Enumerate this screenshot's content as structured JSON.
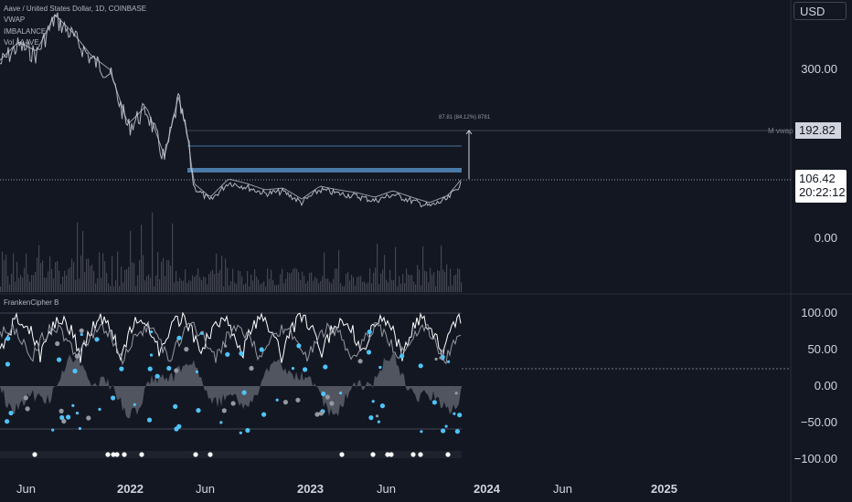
{
  "header": {
    "symbol_line": "Aave / United States Dollar, 1D, COINBASE",
    "indicator_1": "VWAP",
    "indicator_2": "IMBALANCE",
    "indicator_3": "Vol · AAVE"
  },
  "currency_button": "USD",
  "price_axis": {
    "labels": [
      "300.00",
      "0.00"
    ]
  },
  "mvwap_label": "M vwap",
  "mvwap_value": "192.82",
  "current_price": "106.42",
  "countdown": "20:22:12",
  "measure_text": "87.81 (84.12%) 8781",
  "oscillator": {
    "title": "FrankenCipher B",
    "axis_labels": [
      "100.00",
      "50.00",
      "0.00",
      "−50.00",
      "−100.00"
    ]
  },
  "time_axis": {
    "labels": [
      "Jun",
      "2022",
      "Jun",
      "2023",
      "Jun",
      "2024",
      "Jun",
      "2025"
    ]
  },
  "colors": {
    "background": "#131722",
    "price_line": "#b2b5be",
    "zone": "#5b9bd5",
    "dots": "#4fc3f7",
    "wave_fill": "#5d606b",
    "osc_line": "#ffffff"
  }
}
